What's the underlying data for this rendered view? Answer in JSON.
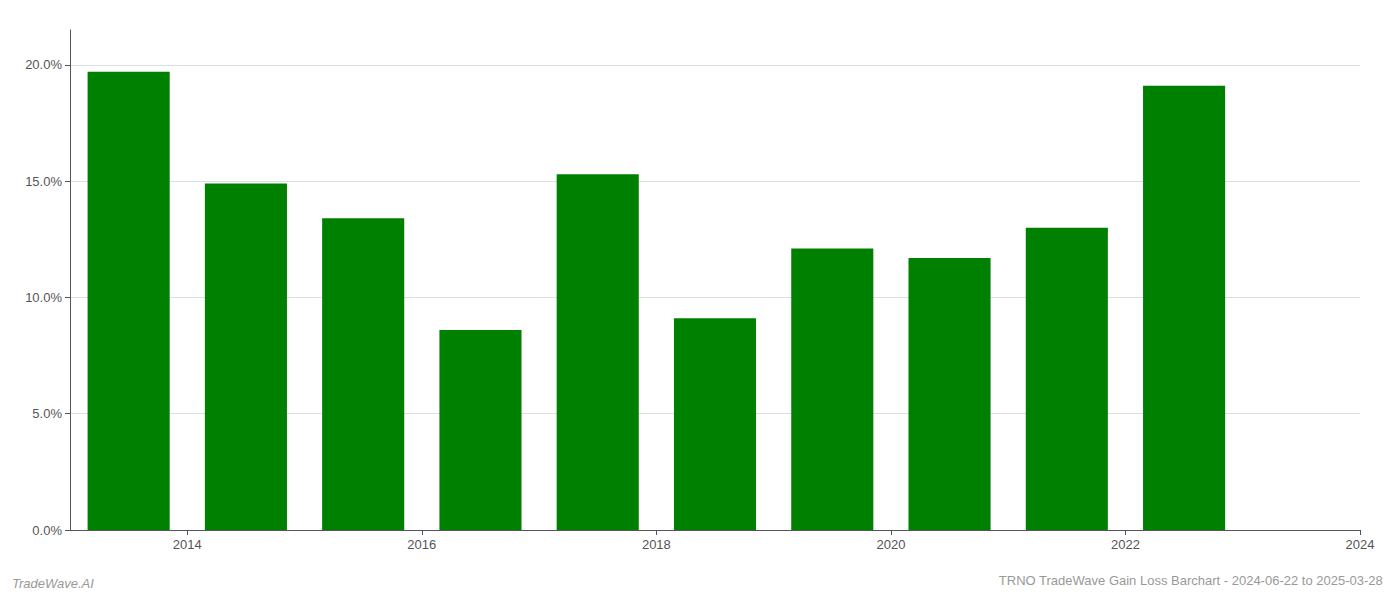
{
  "chart_data": {
    "type": "bar",
    "title": "TRNO TradeWave Gain Loss Barchart - 2024-06-22 to 2025-03-28",
    "annotations": [
      "TradeWave.AI"
    ],
    "x": [
      2014,
      2015,
      2016,
      2017,
      2018,
      2019,
      2020,
      2021,
      2022,
      2023
    ],
    "values": [
      0.197,
      0.149,
      0.134,
      0.086,
      0.153,
      0.091,
      0.121,
      0.117,
      0.13,
      0.191
    ],
    "color": "#008000",
    "xlim": [
      2013.5,
      2024.5
    ],
    "xticks": [
      {
        "value": 2014.5,
        "label": "2014"
      },
      {
        "value": 2016.5,
        "label": "2016"
      },
      {
        "value": 2018.5,
        "label": "2018"
      },
      {
        "value": 2020.5,
        "label": "2020"
      },
      {
        "value": 2022.5,
        "label": "2022"
      },
      {
        "value": 2024.5,
        "label": "2024"
      }
    ],
    "ylim": [
      0,
      0.215
    ],
    "yticks": [
      {
        "value": 0.0,
        "label": "0.0%"
      },
      {
        "value": 0.05,
        "label": "5.0%"
      },
      {
        "value": 0.1,
        "label": "10.0%"
      },
      {
        "value": 0.15,
        "label": "15.0%"
      },
      {
        "value": 0.2,
        "label": "20.0%"
      }
    ],
    "grid": true
  }
}
